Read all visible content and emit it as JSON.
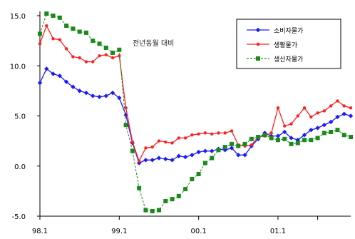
{
  "chart_data": {
    "type": "line",
    "title": "",
    "annotation": "전년동월 대비",
    "xlabel": "",
    "ylabel": "",
    "ylim": [
      -5.0,
      15.0
    ],
    "y_ticks": [
      -5.0,
      0.0,
      5.0,
      10.0,
      15.0
    ],
    "y_tick_labels": [
      "-5.0",
      "0.0",
      "5.0",
      "10.0",
      "15.0"
    ],
    "x_tick_labels": [
      {
        "label": "98.1",
        "index": 0
      },
      {
        "label": "99.1",
        "index": 12
      },
      {
        "label": "00.1",
        "index": 24
      },
      {
        "label": "01.1",
        "index": 36
      },
      {
        "label": "",
        "index": 42
      }
    ],
    "grid": false,
    "legend_position": "top-right",
    "series": [
      {
        "name": "소비자물가",
        "color": "#1a1aff",
        "marker": "diamond",
        "dashed": false,
        "values": [
          8.3,
          9.7,
          9.2,
          9.0,
          8.4,
          7.9,
          7.5,
          7.3,
          7.0,
          6.9,
          7.0,
          7.3,
          6.8,
          5.1,
          2.3,
          0.3,
          0.6,
          0.6,
          0.8,
          0.7,
          0.6,
          1.0,
          0.9,
          1.1,
          1.4,
          1.5,
          1.5,
          1.7,
          1.6,
          1.8,
          1.1,
          1.1,
          2.0,
          2.7,
          3.3,
          3.0,
          3.0,
          3.4,
          2.8,
          2.6,
          3.1,
          3.6,
          3.8,
          4.1,
          4.4,
          4.9,
          5.2,
          5.0
        ]
      },
      {
        "name": "생활물가",
        "color": "#ff2020",
        "marker": "circle",
        "dashed": false,
        "values": [
          12.2,
          14.0,
          12.7,
          12.6,
          11.7,
          10.9,
          10.8,
          10.4,
          10.4,
          11.0,
          11.1,
          10.8,
          11.0,
          5.8,
          2.4,
          0.5,
          1.8,
          1.9,
          2.5,
          2.4,
          2.3,
          2.8,
          2.8,
          3.1,
          3.2,
          3.3,
          3.2,
          3.3,
          3.3,
          3.5,
          2.1,
          2.0,
          2.1,
          2.9,
          3.0,
          3.3,
          5.8,
          4.0,
          4.2,
          5.0,
          5.8,
          4.9,
          5.3,
          5.5,
          6.0,
          6.5,
          6.0,
          5.8
        ]
      },
      {
        "name": "생산자물가",
        "color": "#1a8a1a",
        "marker": "square",
        "dashed": true,
        "values": [
          13.2,
          15.2,
          15.0,
          14.8,
          14.0,
          13.7,
          13.4,
          13.3,
          12.5,
          12.2,
          11.8,
          11.3,
          11.6,
          4.1,
          1.5,
          -2.2,
          -4.4,
          -4.5,
          -4.4,
          -3.5,
          -3.3,
          -3.0,
          -2.3,
          -1.3,
          -0.8,
          0.3,
          0.8,
          1.6,
          1.9,
          2.2,
          2.0,
          2.2,
          2.7,
          2.9,
          3.1,
          2.8,
          2.6,
          2.7,
          2.2,
          2.3,
          2.6,
          2.6,
          2.8,
          3.3,
          3.4,
          3.6,
          3.1,
          2.9
        ]
      }
    ]
  }
}
